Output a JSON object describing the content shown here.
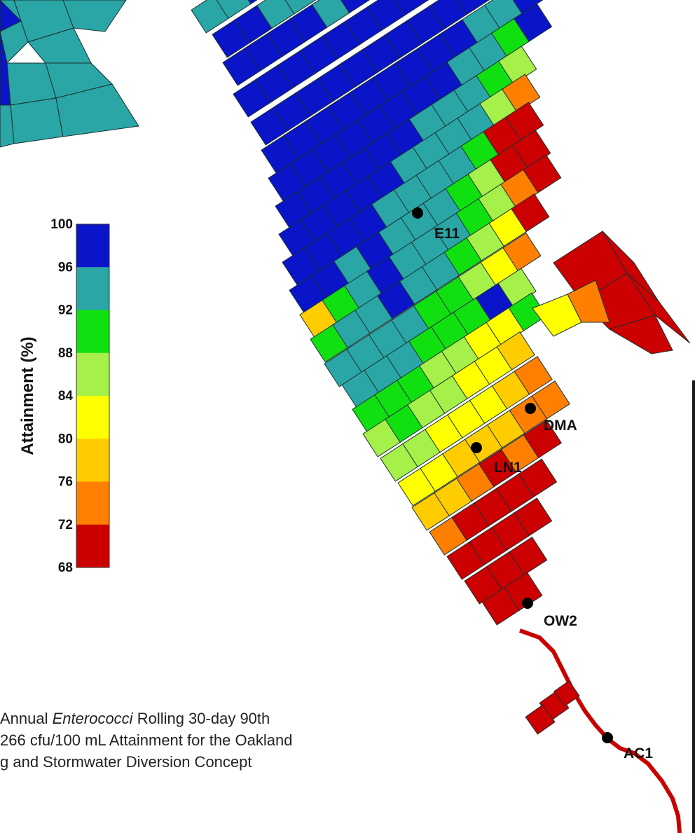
{
  "legend": {
    "title": "Attainment (%)",
    "ticks": [
      "100",
      "96",
      "92",
      "88",
      "84",
      "80",
      "76",
      "72",
      "68"
    ],
    "band_colors": [
      "#0a14c8",
      "#2aa6a6",
      "#10e010",
      "#a6f04a",
      "#ffff00",
      "#ffcc00",
      "#ff8000",
      "#cc0000"
    ]
  },
  "stations": [
    {
      "id": "E11",
      "label": "E11"
    },
    {
      "id": "DMA",
      "label": "DMA"
    },
    {
      "id": "LN1",
      "label": "LN1"
    },
    {
      "id": "OW2",
      "label": "OW2"
    },
    {
      "id": "AC1",
      "label": "AC1"
    }
  ],
  "caption": {
    "line1_prefix": "Annual ",
    "line1_italic": "Enterococci",
    "line1_suffix": " Rolling 30-day 90th",
    "line2": "266 cfu/100 mL Attainment for the Oakland",
    "line3": "g and Stormwater Diversion Concept"
  },
  "colors": {
    "grid_line": "#1a3030",
    "river": "#c80000",
    "station_dot": "#000000"
  }
}
